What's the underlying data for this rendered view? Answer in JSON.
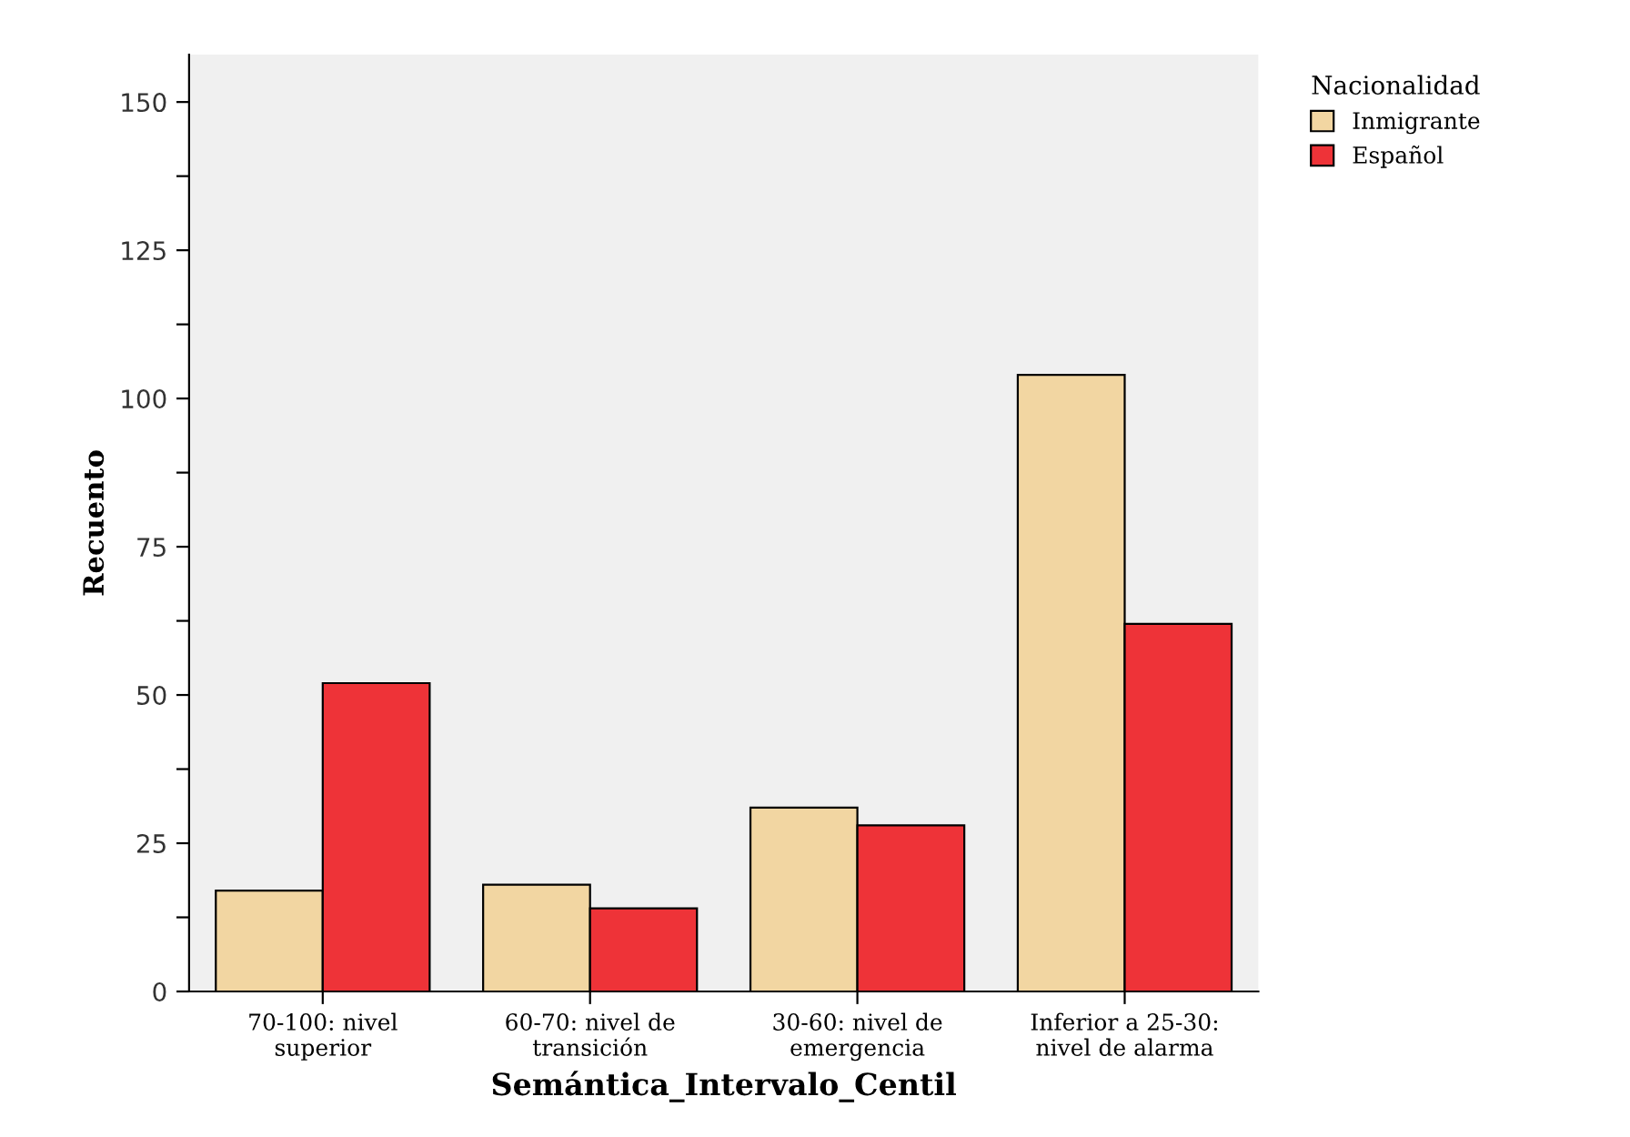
{
  "chart_data": {
    "type": "bar",
    "xlabel": "Semántica_Intervalo_Centil",
    "ylabel": "Recuento",
    "legend_title": "Nacionalidad",
    "categories": [
      "70-100: nivel\nsuperior",
      "60-70: nivel de\ntransición",
      "30-60: nivel de\nemergencia",
      "Inferior a 25-30:\nnivel de alarma"
    ],
    "series": [
      {
        "name": "Inmigrante",
        "color": "#f2d6a2",
        "values": [
          17,
          18,
          31,
          104
        ]
      },
      {
        "name": "Español",
        "color": "#ee3338",
        "values": [
          52,
          14,
          28,
          62
        ]
      }
    ],
    "ylim": [
      0,
      158
    ],
    "yticks": [
      0,
      {
        "value": 12.5,
        "label": null
      },
      25,
      {
        "value": 37.5,
        "label": null
      },
      50,
      {
        "value": 62.5,
        "label": null
      },
      75,
      {
        "value": 87.5,
        "label": null
      },
      100,
      {
        "value": 112.5,
        "label": null
      },
      125,
      {
        "value": 137.5,
        "label": null
      },
      150
    ],
    "grid": false,
    "legend": "top right"
  }
}
